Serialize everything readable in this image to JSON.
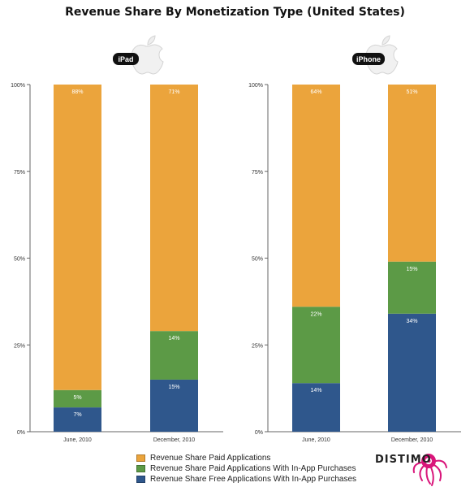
{
  "title": "Revenue Share By Monetization Type (United States)",
  "colors": {
    "paid": "#EBA43C",
    "paid_iap": "#5C9A46",
    "free_iap": "#2F578C",
    "axis": "#666666",
    "label_on_bar": "#ffffff",
    "brand": "#D9157A"
  },
  "panels": [
    {
      "badge": "iPad",
      "icon": "apple-logo-icon"
    },
    {
      "badge": "iPhone",
      "icon": "apple-logo-icon"
    }
  ],
  "legend": [
    {
      "label": "Revenue Share Paid Applications",
      "color_key": "paid"
    },
    {
      "label": "Revenue Share Paid Applications With In-App Purchases",
      "color_key": "paid_iap"
    },
    {
      "label": "Revenue Share Free Applications With In-App Purchases",
      "color_key": "free_iap"
    }
  ],
  "brand": {
    "name": "DISTIMO",
    "icon": "octopus-logo-icon"
  },
  "chart_data": [
    {
      "type": "bar",
      "stacked": true,
      "title": "iPad",
      "categories": [
        "June, 2010",
        "December, 2010"
      ],
      "yticks": [
        "0%",
        "25%",
        "50%",
        "75%",
        "100%"
      ],
      "ylim": [
        0,
        100
      ],
      "series": [
        {
          "name": "Revenue Share Free Applications With In-App Purchases",
          "values": [
            7,
            15
          ],
          "labels": [
            "7%",
            "15%"
          ]
        },
        {
          "name": "Revenue Share Paid Applications With In-App Purchases",
          "values": [
            5,
            14
          ],
          "labels": [
            "5%",
            "14%"
          ]
        },
        {
          "name": "Revenue Share Paid Applications",
          "values": [
            88,
            71
          ],
          "labels": [
            "88%",
            "71%"
          ]
        }
      ]
    },
    {
      "type": "bar",
      "stacked": true,
      "title": "iPhone",
      "categories": [
        "June, 2010",
        "December, 2010"
      ],
      "yticks": [
        "0%",
        "25%",
        "50%",
        "75%",
        "100%"
      ],
      "ylim": [
        0,
        100
      ],
      "series": [
        {
          "name": "Revenue Share Free Applications With In-App Purchases",
          "values": [
            14,
            34
          ],
          "labels": [
            "14%",
            "34%"
          ]
        },
        {
          "name": "Revenue Share Paid Applications With In-App Purchases",
          "values": [
            22,
            15
          ],
          "labels": [
            "22%",
            "15%"
          ]
        },
        {
          "name": "Revenue Share Paid Applications",
          "values": [
            64,
            51
          ],
          "labels": [
            "64%",
            "51%"
          ]
        }
      ]
    }
  ]
}
